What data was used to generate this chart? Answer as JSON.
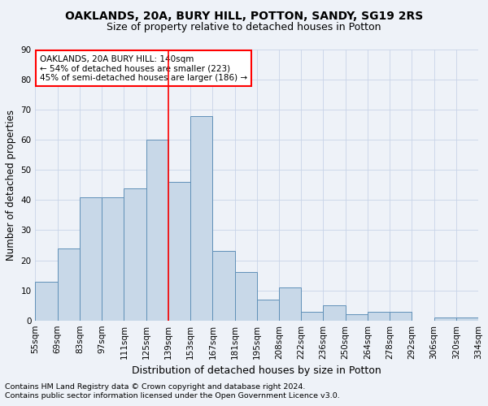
{
  "title1": "OAKLANDS, 20A, BURY HILL, POTTON, SANDY, SG19 2RS",
  "title2": "Size of property relative to detached houses in Potton",
  "xlabel": "Distribution of detached houses by size in Potton",
  "ylabel": "Number of detached properties",
  "footnote1": "Contains HM Land Registry data © Crown copyright and database right 2024.",
  "footnote2": "Contains public sector information licensed under the Open Government Licence v3.0.",
  "annotation_line1": "OAKLANDS, 20A BURY HILL: 140sqm",
  "annotation_line2": "← 54% of detached houses are smaller (223)",
  "annotation_line3": "45% of semi-detached houses are larger (186) →",
  "bar_values": [
    13,
    24,
    41,
    41,
    44,
    60,
    46,
    68,
    23,
    16,
    7,
    11,
    3,
    5,
    2,
    3,
    3,
    0,
    1,
    1
  ],
  "bin_labels": [
    "55sqm",
    "69sqm",
    "83sqm",
    "97sqm",
    "111sqm",
    "125sqm",
    "139sqm",
    "153sqm",
    "167sqm",
    "181sqm",
    "195sqm",
    "208sqm",
    "222sqm",
    "236sqm",
    "250sqm",
    "264sqm",
    "278sqm",
    "292sqm",
    "306sqm",
    "320sqm",
    "334sqm"
  ],
  "bar_color": "#c8d8e8",
  "bar_edge_color": "#6090b8",
  "vline_x": 5.5,
  "vline_color": "red",
  "ylim": [
    0,
    90
  ],
  "yticks": [
    0,
    10,
    20,
    30,
    40,
    50,
    60,
    70,
    80,
    90
  ],
  "grid_color": "#c8d4e8",
  "background_color": "#eef2f8",
  "annotation_box_color": "white",
  "annotation_box_edge": "red",
  "title1_fontsize": 10,
  "title2_fontsize": 9,
  "ylabel_fontsize": 8.5,
  "xlabel_fontsize": 9,
  "tick_fontsize": 7.5,
  "annotation_fontsize": 7.5,
  "footnote_fontsize": 6.8
}
